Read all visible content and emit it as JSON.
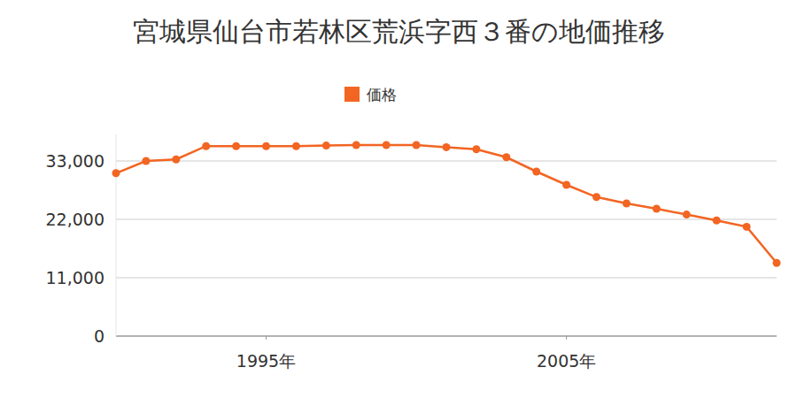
{
  "chart_data": {
    "type": "line",
    "title": "宮城県仙台市若林区荒浜字西３番の地価推移",
    "x": [
      1990,
      1991,
      1992,
      1993,
      1994,
      1995,
      1996,
      1997,
      1998,
      1999,
      2000,
      2001,
      2002,
      2003,
      2004,
      2005,
      2006,
      2007,
      2008,
      2009,
      2010,
      2011,
      2012
    ],
    "series": [
      {
        "name": "価格",
        "color": "#f26522",
        "marker": "circle",
        "values": [
          30700,
          33000,
          33300,
          35800,
          35800,
          35800,
          35800,
          35900,
          36000,
          36000,
          36000,
          35600,
          35200,
          33700,
          31000,
          28500,
          26200,
          25000,
          24000,
          22900,
          21800,
          20600,
          13800
        ]
      }
    ],
    "xlim": [
      1990,
      2012
    ],
    "xticks": [
      {
        "value": 1995,
        "label": "1995年"
      },
      {
        "value": 2005,
        "label": "2005年"
      }
    ],
    "ylim": [
      0,
      38000
    ],
    "yticks": [
      0,
      {
        "value": 11000,
        "label": "11,000"
      },
      {
        "value": 22000,
        "label": "22,000"
      },
      {
        "value": 33000,
        "label": "33,000"
      }
    ],
    "grid": true,
    "legend": "top"
  }
}
